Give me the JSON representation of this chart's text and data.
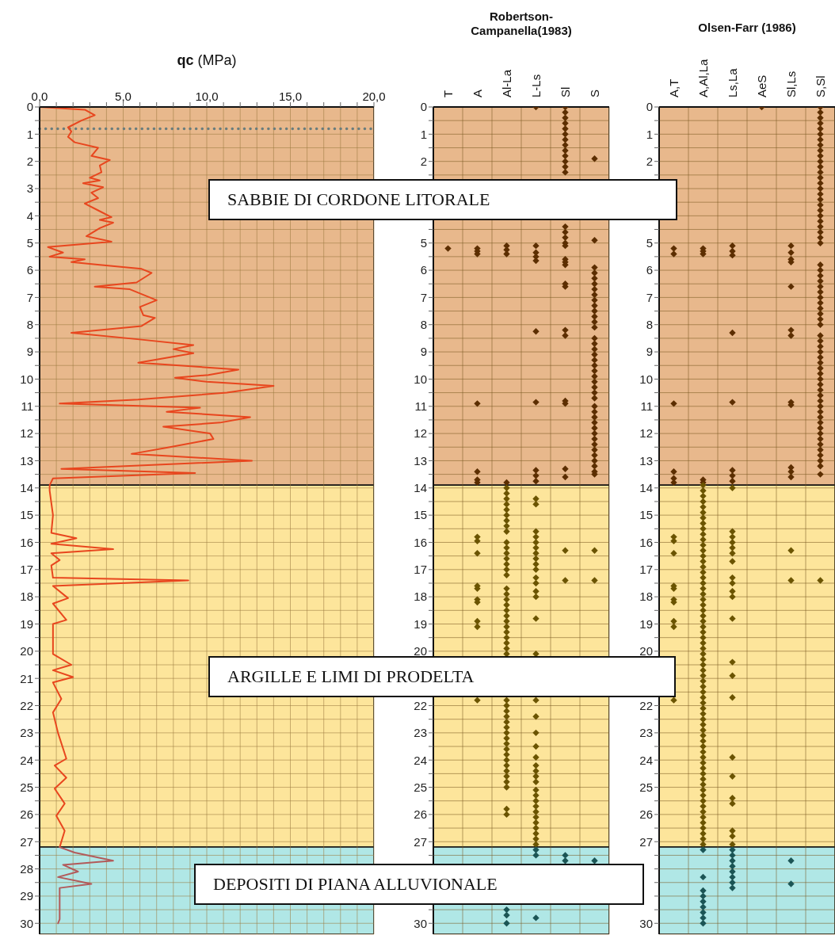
{
  "chart_data": [
    {
      "type": "line",
      "xlabel": "qc (MPa)",
      "xlim": [
        0,
        20
      ],
      "xticks": [
        {
          "value": 0,
          "label": "0,0"
        },
        {
          "value": 1,
          "label": null
        },
        {
          "value": 2,
          "label": null
        },
        {
          "value": 3,
          "label": null
        },
        {
          "value": 4,
          "label": null
        },
        {
          "value": 5,
          "label": "5,0"
        },
        {
          "value": 6,
          "label": null
        },
        {
          "value": 7,
          "label": null
        },
        {
          "value": 8,
          "label": null
        },
        {
          "value": 9,
          "label": null
        },
        {
          "value": 10,
          "label": "10,0"
        },
        {
          "value": 11,
          "label": null
        },
        {
          "value": 12,
          "label": null
        },
        {
          "value": 13,
          "label": null
        },
        {
          "value": 14,
          "label": null
        },
        {
          "value": 15,
          "label": "15,0"
        },
        {
          "value": 16,
          "label": null
        },
        {
          "value": 17,
          "label": null
        },
        {
          "value": 18,
          "label": null
        },
        {
          "value": 19,
          "label": null
        },
        {
          "value": 20,
          "label": "20,0"
        }
      ],
      "ylim": [
        30.4,
        0
      ],
      "yticks": [
        0,
        {
          "value": 0.5,
          "label": null
        },
        1,
        {
          "value": 1.5,
          "label": null
        },
        2,
        {
          "value": 2.5,
          "label": null
        },
        3,
        {
          "value": 3.5,
          "label": null
        },
        4,
        {
          "value": 4.5,
          "label": null
        },
        5,
        {
          "value": 5.5,
          "label": null
        },
        6,
        {
          "value": 6.5,
          "label": null
        },
        7,
        {
          "value": 7.5,
          "label": null
        },
        8,
        {
          "value": 8.5,
          "label": null
        },
        9,
        {
          "value": 9.5,
          "label": null
        },
        10,
        {
          "value": 10.5,
          "label": null
        },
        11,
        {
          "value": 11.5,
          "label": null
        },
        12,
        {
          "value": 12.5,
          "label": null
        },
        13,
        {
          "value": 13.5,
          "label": null
        },
        14,
        {
          "value": 14.5,
          "label": null
        },
        15,
        {
          "value": 15.5,
          "label": null
        },
        16,
        {
          "value": 16.5,
          "label": null
        },
        17,
        {
          "value": 17.5,
          "label": null
        },
        18,
        {
          "value": 18.5,
          "label": null
        },
        19,
        {
          "value": 19.5,
          "label": null
        },
        20,
        {
          "value": 20.5,
          "label": null
        },
        21,
        {
          "value": 21.5,
          "label": null
        },
        22,
        {
          "value": 22.5,
          "label": null
        },
        23,
        {
          "value": 23.5,
          "label": null
        },
        24,
        {
          "value": 24.5,
          "label": null
        },
        25,
        {
          "value": 25.5,
          "label": null
        },
        26,
        {
          "value": 26.5,
          "label": null
        },
        27,
        {
          "value": 27.5,
          "label": null
        },
        28,
        {
          "value": 28.5,
          "label": null
        },
        29,
        {
          "value": 29.5,
          "label": null
        },
        30
      ],
      "grid": true,
      "marker": "none",
      "line_style": "solid",
      "series": [
        {
          "color": "#e8461e",
          "x": [
            0.0,
            2.7,
            3.3,
            2.5,
            1.7,
            1.9,
            1.7,
            2.1,
            3.5,
            3.1,
            4.2,
            3.6,
            3.7,
            3.0,
            3.6,
            2.6,
            3.8,
            3.1,
            3.5,
            2.7,
            3.5,
            4.3,
            3.6,
            4.4,
            3.6,
            2.8,
            4.3,
            0.5,
            1.4,
            0.6,
            2.7,
            1.9,
            3.6,
            6.1,
            6.7,
            5.8,
            3.3,
            5.4,
            7.0,
            6.0,
            6.2,
            6.9,
            6.1,
            1.9,
            6.1,
            9.2,
            8.0,
            9.2,
            5.9,
            11.9,
            10.1,
            8.1,
            10.0,
            14.0,
            11.2,
            5.9,
            1.2,
            9.6,
            7.6,
            12.6,
            10.8,
            7.4,
            10.2,
            10.4,
            7.8,
            5.5,
            12.7,
            1.3,
            9.3,
            0.8,
            0.6,
            0.6,
            0.8,
            0.7,
            2.2,
            0.7,
            4.4,
            0.7,
            1.2,
            0.7,
            0.8,
            8.9,
            0.8,
            1.7,
            0.8,
            1.6,
            0.8,
            0.8,
            1.9,
            0.8,
            2.0,
            0.8,
            1.3,
            0.8,
            1.1,
            1.6,
            0.9,
            1.6,
            0.9,
            1.5,
            1.0,
            1.5,
            1.2
          ],
          "values": [
            0,
            0.1,
            0.3,
            0.5,
            0.75,
            0.9,
            1.1,
            1.3,
            1.5,
            1.8,
            1.95,
            2.15,
            2.4,
            2.6,
            2.7,
            2.8,
            2.95,
            3.15,
            3.35,
            3.55,
            3.8,
            4.05,
            4.15,
            4.25,
            4.45,
            4.75,
            4.95,
            5.15,
            5.35,
            5.5,
            5.6,
            5.7,
            5.8,
            5.95,
            6.1,
            6.45,
            6.6,
            6.7,
            7.1,
            7.35,
            7.65,
            7.75,
            8.05,
            8.3,
            8.55,
            8.75,
            8.9,
            9.05,
            9.4,
            9.65,
            9.85,
            9.95,
            10.1,
            10.25,
            10.5,
            10.75,
            10.9,
            11.05,
            11.2,
            11.4,
            11.6,
            11.75,
            12.0,
            12.2,
            12.5,
            12.75,
            13.0,
            13.3,
            13.45,
            13.65,
            13.9,
            14.1,
            15.0,
            15.65,
            15.85,
            16.05,
            16.25,
            16.4,
            16.65,
            16.85,
            17.3,
            17.4,
            17.6,
            18.05,
            18.25,
            18.85,
            19.0,
            20.1,
            20.5,
            20.7,
            20.95,
            21.15,
            21.75,
            22.25,
            23.0,
            23.95,
            24.2,
            24.65,
            25.05,
            25.6,
            26.05,
            26.6,
            27.2
          ]
        },
        {
          "color": "#b25a5a",
          "x": [
            1.2,
            2.1,
            4.4,
            1.4,
            2.3,
            1.1,
            3.1,
            1.2,
            1.2,
            1.1
          ],
          "values": [
            27.2,
            27.4,
            27.7,
            27.85,
            28.1,
            28.3,
            28.55,
            28.7,
            29.85,
            30.0
          ]
        }
      ],
      "ref_lines": [
        {
          "axis": "y",
          "value": 0.8,
          "color": "#6a7d7d",
          "line_style": "dotted"
        }
      ],
      "bands": [
        {
          "axis": "y",
          "from": 0,
          "to": 13.9,
          "color": "#e8b88c",
          "label": "SABBIE DI CORDONE LITORALE"
        },
        {
          "axis": "y",
          "from": 13.9,
          "to": 27.2,
          "color": "#fde59b",
          "label": "ARGILLE E LIMI DI PRODELTA"
        },
        {
          "axis": "y",
          "from": 27.2,
          "to": 30.4,
          "color": "#b0e7e6",
          "label": "DEPOSITI DI PIANA ALLUVIONALE"
        }
      ]
    },
    {
      "type": "scatter",
      "title": "Robertson-Campanella(1983)",
      "categories": [
        "T",
        "A",
        "Al-La",
        "L-Ls",
        "Sl",
        "S"
      ],
      "ylim": [
        30.4,
        0
      ],
      "yticks": [
        0,
        {
          "value": 0.5,
          "label": null
        },
        1,
        {
          "value": 1.5,
          "label": null
        },
        2,
        {
          "value": 2.5,
          "label": null
        },
        {
          "value": 3,
          "label": null
        },
        {
          "value": 3.5,
          "label": null
        },
        {
          "value": 4,
          "label": null
        },
        {
          "value": 4.5,
          "label": null
        },
        5,
        {
          "value": 5.5,
          "label": null
        },
        6,
        {
          "value": 6.5,
          "label": null
        },
        7,
        {
          "value": 7.5,
          "label": null
        },
        8,
        {
          "value": 8.5,
          "label": null
        },
        9,
        {
          "value": 9.5,
          "label": null
        },
        10,
        {
          "value": 10.5,
          "label": null
        },
        11,
        {
          "value": 11.5,
          "label": null
        },
        12,
        {
          "value": 12.5,
          "label": null
        },
        13,
        {
          "value": 13.5,
          "label": null
        },
        14,
        {
          "value": 14.5,
          "label": null
        },
        15,
        {
          "value": 15.5,
          "label": null
        },
        16,
        {
          "value": 16.5,
          "label": null
        },
        17,
        {
          "value": 17.5,
          "label": null
        },
        18,
        {
          "value": 18.5,
          "label": null
        },
        19,
        {
          "value": 19.5,
          "label": null
        },
        20,
        {
          "value": 20.5,
          "label": null
        },
        {
          "value": 21,
          "label": null
        },
        {
          "value": 21.5,
          "label": null
        },
        22,
        {
          "value": 22.5,
          "label": null
        },
        23,
        {
          "value": 23.5,
          "label": null
        },
        24,
        {
          "value": 24.5,
          "label": null
        },
        25,
        {
          "value": 25.5,
          "label": null
        },
        26,
        {
          "value": 26.5,
          "label": null
        },
        27,
        {
          "value": 27.5,
          "label": null
        },
        {
          "value": 28,
          "label": null
        },
        {
          "value": 28.5,
          "label": null
        },
        {
          "value": 29,
          "label": null
        },
        {
          "value": 29.5,
          "label": null
        },
        30
      ],
      "grid": true,
      "marker": "diamond",
      "series": [
        {
          "color": "#5c2e00",
          "x": [
            "T",
            "A",
            "A",
            "A",
            "A",
            "A",
            "A",
            "A",
            "Al-La",
            "Al-La",
            "Al-La",
            "Al-La",
            "L-Ls",
            "L-Ls",
            "L-Ls",
            "L-Ls",
            "L-Ls",
            "L-Ls",
            "L-Ls",
            "L-Ls",
            "L-Ls",
            "L-Ls",
            "Sl",
            "Sl",
            "Sl",
            "Sl",
            "Sl",
            "Sl",
            "Sl",
            "Sl",
            "Sl",
            "Sl",
            "Sl",
            "Sl",
            "Sl",
            "Sl",
            "Sl",
            "Sl",
            "Sl",
            "Sl",
            "Sl",
            "Sl",
            "Sl",
            "Sl",
            "Sl",
            "Sl",
            "Sl",
            "Sl",
            "Sl",
            "Sl",
            "Sl",
            "S",
            "S",
            "S",
            "S",
            "S",
            "S",
            "S",
            "S",
            "S",
            "S",
            "S",
            "S",
            "S",
            "S",
            "S",
            "S",
            "S",
            "S",
            "S",
            "S",
            "S",
            "S",
            "S",
            "S",
            "S",
            "S",
            "S",
            "S",
            "S",
            "S",
            "S",
            "S",
            "S",
            "S",
            "S",
            "S",
            "S",
            "S",
            "S",
            "S"
          ],
          "values": [
            5.2,
            5.2,
            5.3,
            5.4,
            10.9,
            13.4,
            13.7,
            13.8,
            5.1,
            5.25,
            5.4,
            13.8,
            0,
            5.1,
            5.35,
            5.5,
            5.65,
            8.25,
            10.85,
            13.35,
            13.55,
            13.75,
            0,
            0.2,
            0.4,
            0.6,
            0.8,
            1.0,
            1.2,
            1.4,
            1.6,
            1.8,
            2.0,
            2.2,
            2.4,
            4.4,
            4.6,
            4.8,
            5.0,
            5.1,
            5.6,
            5.7,
            5.8,
            6.5,
            6.6,
            8.2,
            8.4,
            10.8,
            10.9,
            13.3,
            13.6,
            1.9,
            4.9,
            5.9,
            6.1,
            6.3,
            6.5,
            6.7,
            6.9,
            7.1,
            7.3,
            7.5,
            7.7,
            7.9,
            8.1,
            8.5,
            8.7,
            8.9,
            9.1,
            9.3,
            9.5,
            9.7,
            9.9,
            10.1,
            10.3,
            10.5,
            10.7,
            11.0,
            11.2,
            11.4,
            11.6,
            11.8,
            12.0,
            12.2,
            12.4,
            12.6,
            12.8,
            13.0,
            13.2,
            13.4,
            13.5
          ]
        },
        {
          "color": "#6b5400",
          "x": [
            "A",
            "A",
            "A",
            "A",
            "A",
            "A",
            "A",
            "A",
            "A",
            "A",
            "Al-La",
            "Al-La",
            "Al-La",
            "Al-La",
            "Al-La",
            "Al-La",
            "Al-La",
            "Al-La",
            "Al-La",
            "Al-La",
            "Al-La",
            "Al-La",
            "Al-La",
            "Al-La",
            "Al-La",
            "Al-La",
            "Al-La",
            "Al-La",
            "Al-La",
            "Al-La",
            "Al-La",
            "Al-La",
            "Al-La",
            "Al-La",
            "Al-La",
            "Al-La",
            "Al-La",
            "Al-La",
            "Al-La",
            "Al-La",
            "Al-La",
            "Al-La",
            "Al-La",
            "Al-La",
            "Al-La",
            "Al-La",
            "Al-La",
            "Al-La",
            "Al-La",
            "Al-La",
            "Al-La",
            "Al-La",
            "Al-La",
            "Al-La",
            "Al-La",
            "Al-La",
            "Al-La",
            "Al-La",
            "L-Ls",
            "L-Ls",
            "L-Ls",
            "L-Ls",
            "L-Ls",
            "L-Ls",
            "L-Ls",
            "L-Ls",
            "L-Ls",
            "L-Ls",
            "L-Ls",
            "L-Ls",
            "L-Ls",
            "L-Ls",
            "L-Ls",
            "L-Ls",
            "L-Ls",
            "L-Ls",
            "L-Ls",
            "L-Ls",
            "L-Ls",
            "L-Ls",
            "L-Ls",
            "L-Ls",
            "L-Ls",
            "L-Ls",
            "L-Ls",
            "L-Ls",
            "L-Ls",
            "L-Ls",
            "L-Ls",
            "L-Ls",
            "L-Ls",
            "L-Ls",
            "L-Ls",
            "L-Ls",
            "Sl",
            "Sl",
            "S",
            "S"
          ],
          "values": [
            15.8,
            15.95,
            16.4,
            17.6,
            17.7,
            18.1,
            18.2,
            18.9,
            19.1,
            21.8,
            14.0,
            14.2,
            14.4,
            14.6,
            14.8,
            15.0,
            15.2,
            15.4,
            15.6,
            16.0,
            16.2,
            16.4,
            16.6,
            16.8,
            17.0,
            17.2,
            17.7,
            17.9,
            18.1,
            18.3,
            18.5,
            18.7,
            18.9,
            19.1,
            19.3,
            19.5,
            19.7,
            19.9,
            20.1,
            21.8,
            22.0,
            22.2,
            22.4,
            22.6,
            22.8,
            23.0,
            23.2,
            23.4,
            23.6,
            23.8,
            24.0,
            24.2,
            24.4,
            24.6,
            24.8,
            25.0,
            25.8,
            26.0,
            14.4,
            14.6,
            15.6,
            15.8,
            16.0,
            16.2,
            16.4,
            16.6,
            16.8,
            17.0,
            17.3,
            17.5,
            17.8,
            18.0,
            18.8,
            20.1,
            21.8,
            22.4,
            23.0,
            23.5,
            23.9,
            24.2,
            24.4,
            24.6,
            24.8,
            25.1,
            25.3,
            25.5,
            25.7,
            25.9,
            26.1,
            26.3,
            26.5,
            26.7,
            26.9,
            27.1,
            16.3,
            17.4,
            16.3,
            17.4
          ]
        },
        {
          "color": "#1b5555",
          "x": [
            "Al-La",
            "Al-La",
            "Al-La",
            "L-Ls",
            "L-Ls",
            "L-Ls",
            "Sl",
            "Sl",
            "S"
          ],
          "values": [
            29.5,
            29.7,
            30.0,
            27.3,
            27.5,
            29.8,
            27.5,
            27.7,
            27.7
          ]
        }
      ],
      "bands": [
        {
          "axis": "y",
          "from": 0,
          "to": 13.9,
          "color": "#e8b88c"
        },
        {
          "axis": "y",
          "from": 13.9,
          "to": 27.2,
          "color": "#fde59b"
        },
        {
          "axis": "y",
          "from": 27.2,
          "to": 30.4,
          "color": "#b0e7e6"
        }
      ]
    },
    {
      "type": "scatter",
      "title": "Olsen-Farr (1986)",
      "categories": [
        "A,T",
        "A,Al,La",
        "Ls,La",
        "AeS",
        "Sl,Ls",
        "S,Sl"
      ],
      "ylim": [
        30.4,
        0
      ],
      "yticks": [
        0,
        {
          "value": 0.5,
          "label": null
        },
        1,
        {
          "value": 1.5,
          "label": null
        },
        2,
        {
          "value": 2.5,
          "label": null
        },
        {
          "value": 3,
          "label": null
        },
        {
          "value": 3.5,
          "label": null
        },
        {
          "value": 4,
          "label": null
        },
        {
          "value": 4.5,
          "label": null
        },
        5,
        {
          "value": 5.5,
          "label": null
        },
        6,
        {
          "value": 6.5,
          "label": null
        },
        7,
        {
          "value": 7.5,
          "label": null
        },
        8,
        {
          "value": 8.5,
          "label": null
        },
        9,
        {
          "value": 9.5,
          "label": null
        },
        10,
        {
          "value": 10.5,
          "label": null
        },
        11,
        {
          "value": 11.5,
          "label": null
        },
        12,
        {
          "value": 12.5,
          "label": null
        },
        13,
        {
          "value": 13.5,
          "label": null
        },
        14,
        {
          "value": 14.5,
          "label": null
        },
        15,
        {
          "value": 15.5,
          "label": null
        },
        16,
        {
          "value": 16.5,
          "label": null
        },
        17,
        {
          "value": 17.5,
          "label": null
        },
        18,
        {
          "value": 18.5,
          "label": null
        },
        19,
        {
          "value": 19.5,
          "label": null
        },
        20,
        {
          "value": 20.5,
          "label": null
        },
        {
          "value": 21,
          "label": null
        },
        {
          "value": 21.5,
          "label": null
        },
        22,
        {
          "value": 22.5,
          "label": null
        },
        23,
        {
          "value": 23.5,
          "label": null
        },
        24,
        {
          "value": 24.5,
          "label": null
        },
        25,
        {
          "value": 25.5,
          "label": null
        },
        26,
        {
          "value": 26.5,
          "label": null
        },
        27,
        {
          "value": 27.5,
          "label": null
        },
        {
          "value": 28,
          "label": null
        },
        {
          "value": 28.5,
          "label": null
        },
        {
          "value": 29,
          "label": null
        },
        {
          "value": 29.5,
          "label": null
        },
        30
      ],
      "grid": true,
      "marker": "diamond",
      "series": [
        {
          "color": "#5c2e00",
          "x": [
            "A,T",
            "A,T",
            "A,T",
            "A,T",
            "A,T",
            "A,T",
            "A,Al,La",
            "A,Al,La",
            "A,Al,La",
            "A,Al,La",
            "A,Al,La",
            "Ls,La",
            "Ls,La",
            "Ls,La",
            "Ls,La",
            "Ls,La",
            "Ls,La",
            "Ls,La",
            "Ls,La",
            "AeS",
            "Sl,Ls",
            "Sl,Ls",
            "Sl,Ls",
            "Sl,Ls",
            "Sl,Ls",
            "Sl,Ls",
            "Sl,Ls",
            "Sl,Ls",
            "Sl,Ls",
            "Sl,Ls",
            "Sl,Ls",
            "Sl,Ls",
            "S,Sl",
            "S,Sl",
            "S,Sl",
            "S,Sl",
            "S,Sl",
            "S,Sl",
            "S,Sl",
            "S,Sl",
            "S,Sl",
            "S,Sl",
            "S,Sl",
            "S,Sl",
            "S,Sl",
            "S,Sl",
            "S,Sl",
            "S,Sl",
            "S,Sl",
            "S,Sl",
            "S,Sl",
            "S,Sl",
            "S,Sl",
            "S,Sl",
            "S,Sl",
            "S,Sl",
            "S,Sl",
            "S,Sl",
            "S,Sl",
            "S,Sl",
            "S,Sl",
            "S,Sl",
            "S,Sl",
            "S,Sl",
            "S,Sl",
            "S,Sl",
            "S,Sl",
            "S,Sl",
            "S,Sl",
            "S,Sl",
            "S,Sl",
            "S,Sl",
            "S,Sl",
            "S,Sl",
            "S,Sl",
            "S,Sl",
            "S,Sl",
            "S,Sl",
            "S,Sl",
            "S,Sl",
            "S,Sl",
            "S,Sl",
            "S,Sl",
            "S,Sl",
            "S,Sl",
            "S,Sl",
            "S,Sl",
            "S,Sl",
            "S,Sl",
            "S,Sl",
            "S,Sl",
            "S,Sl",
            "S,Sl",
            "S,Sl",
            "S,Sl",
            "S,Sl"
          ],
          "values": [
            5.2,
            5.4,
            10.9,
            13.4,
            13.65,
            13.8,
            5.2,
            5.3,
            5.4,
            13.7,
            13.8,
            5.1,
            5.3,
            5.45,
            8.3,
            10.85,
            13.35,
            13.55,
            13.75,
            0,
            5.1,
            5.35,
            5.6,
            5.7,
            6.6,
            8.2,
            8.4,
            10.85,
            10.95,
            13.25,
            13.4,
            13.6,
            0,
            0.2,
            0.4,
            0.6,
            0.8,
            1.0,
            1.2,
            1.4,
            1.6,
            1.8,
            2.0,
            2.2,
            2.4,
            2.6,
            2.8,
            3.0,
            3.2,
            3.4,
            3.6,
            3.8,
            4.0,
            4.2,
            4.4,
            4.6,
            4.8,
            5.0,
            5.8,
            6.0,
            6.2,
            6.4,
            6.6,
            6.8,
            7.0,
            7.2,
            7.4,
            7.6,
            7.8,
            8.0,
            8.4,
            8.6,
            8.8,
            9.0,
            9.2,
            9.4,
            9.6,
            9.8,
            10.0,
            10.2,
            10.4,
            10.6,
            10.8,
            11.0,
            11.2,
            11.4,
            11.6,
            11.8,
            12.0,
            12.2,
            12.4,
            12.6,
            12.8,
            13.0,
            13.2,
            13.5
          ]
        },
        {
          "color": "#6b5400",
          "x": [
            "A,T",
            "A,T",
            "A,T",
            "A,T",
            "A,T",
            "A,T",
            "A,T",
            "A,T",
            "A,T",
            "A,T",
            "A,Al,La",
            "A,Al,La",
            "A,Al,La",
            "A,Al,La",
            "A,Al,La",
            "A,Al,La",
            "A,Al,La",
            "A,Al,La",
            "A,Al,La",
            "A,Al,La",
            "A,Al,La",
            "A,Al,La",
            "A,Al,La",
            "A,Al,La",
            "A,Al,La",
            "A,Al,La",
            "A,Al,La",
            "A,Al,La",
            "A,Al,La",
            "A,Al,La",
            "A,Al,La",
            "A,Al,La",
            "A,Al,La",
            "A,Al,La",
            "A,Al,La",
            "A,Al,La",
            "A,Al,La",
            "A,Al,La",
            "A,Al,La",
            "A,Al,La",
            "A,Al,La",
            "A,Al,La",
            "A,Al,La",
            "A,Al,La",
            "A,Al,La",
            "A,Al,La",
            "A,Al,La",
            "A,Al,La",
            "A,Al,La",
            "A,Al,La",
            "A,Al,La",
            "A,Al,La",
            "A,Al,La",
            "A,Al,La",
            "A,Al,La",
            "A,Al,La",
            "A,Al,La",
            "A,Al,La",
            "A,Al,La",
            "A,Al,La",
            "A,Al,La",
            "A,Al,La",
            "A,Al,La",
            "A,Al,La",
            "A,Al,La",
            "A,Al,La",
            "A,Al,La",
            "A,Al,La",
            "A,Al,La",
            "A,Al,La",
            "A,Al,La",
            "A,Al,La",
            "A,Al,La",
            "A,Al,La",
            "A,Al,La",
            "A,Al,La",
            "A,Al,La",
            "Ls,La",
            "Ls,La",
            "Ls,La",
            "Ls,La",
            "Ls,La",
            "Ls,La",
            "Ls,La",
            "Ls,La",
            "Ls,La",
            "Ls,La",
            "Ls,La",
            "Ls,La",
            "Ls,La",
            "Ls,La",
            "Ls,La",
            "Ls,La",
            "Ls,La",
            "Ls,La",
            "Ls,La",
            "Ls,La",
            "Ls,La",
            "Ls,La",
            "Sl,Ls",
            "Sl,Ls",
            "S,Sl"
          ],
          "values": [
            15.8,
            15.95,
            16.4,
            17.6,
            17.7,
            18.1,
            18.2,
            18.9,
            19.1,
            21.8,
            13.9,
            14.1,
            14.3,
            14.5,
            14.7,
            14.9,
            15.1,
            15.3,
            15.5,
            15.7,
            15.9,
            16.1,
            16.3,
            16.5,
            16.7,
            16.9,
            17.1,
            17.3,
            17.5,
            17.7,
            17.9,
            18.1,
            18.3,
            18.5,
            18.7,
            18.9,
            19.1,
            19.3,
            19.5,
            19.7,
            19.9,
            20.1,
            20.3,
            20.5,
            20.7,
            20.9,
            21.1,
            21.3,
            21.5,
            21.7,
            21.9,
            22.1,
            22.3,
            22.5,
            22.7,
            22.9,
            23.1,
            23.3,
            23.5,
            23.7,
            23.9,
            24.1,
            24.3,
            24.5,
            24.7,
            24.9,
            25.1,
            25.3,
            25.5,
            25.7,
            25.9,
            26.1,
            26.3,
            26.5,
            26.7,
            26.9,
            27.1,
            14.0,
            15.6,
            15.8,
            16.0,
            16.2,
            16.4,
            16.7,
            17.3,
            17.5,
            17.8,
            18.0,
            18.8,
            20.4,
            20.9,
            21.7,
            23.9,
            24.6,
            25.4,
            25.6,
            26.6,
            26.8,
            27.1,
            16.3,
            17.4,
            17.4
          ]
        },
        {
          "color": "#1b5555",
          "x": [
            "A,Al,La",
            "A,Al,La",
            "A,Al,La",
            "A,Al,La",
            "A,Al,La",
            "A,Al,La",
            "A,Al,La",
            "A,Al,La",
            "A,Al,La",
            "Ls,La",
            "Ls,La",
            "Ls,La",
            "Ls,La",
            "Ls,La",
            "Ls,La",
            "Ls,La",
            "Ls,La",
            "Sl,Ls",
            "Sl,Ls"
          ],
          "values": [
            27.3,
            28.3,
            28.8,
            29.0,
            29.2,
            29.4,
            29.6,
            29.8,
            30.0,
            27.3,
            27.5,
            27.7,
            27.9,
            28.1,
            28.3,
            28.5,
            28.7,
            27.7,
            28.55
          ]
        }
      ],
      "bands": [
        {
          "axis": "y",
          "from": 0,
          "to": 13.9,
          "color": "#e8b88c"
        },
        {
          "axis": "y",
          "from": 13.9,
          "to": 27.2,
          "color": "#fde59b"
        },
        {
          "axis": "y",
          "from": 27.2,
          "to": 30.4,
          "color": "#b0e7e6"
        }
      ]
    }
  ]
}
